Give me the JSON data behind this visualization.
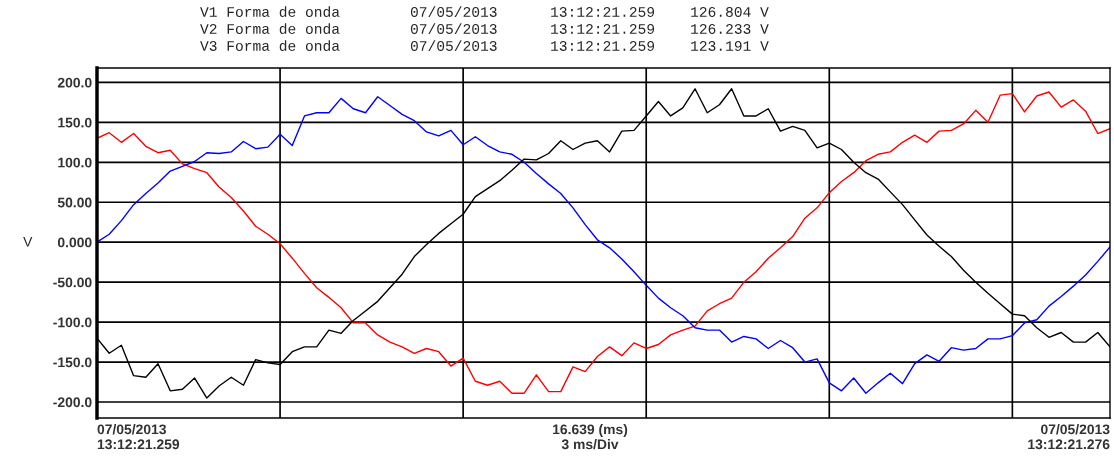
{
  "chart_data": {
    "type": "line",
    "ylabel": "V",
    "annotations": [
      "V1 Forma de onda        07/05/2013      13:12:21.259    126.804 V",
      "V2 Forma de onda        07/05/2013      13:12:21.259    126.233 V",
      "V3 Forma de onda        07/05/2013      13:12:21.259    123.191 V",
      "07/05/2013\n13:12:21.259",
      "16.639 (ms)\n3 ms/Div",
      "07/05/2013\n13:12:21.276"
    ],
    "categories": [
      null,
      null,
      null,
      null,
      null,
      null,
      null,
      null,
      null,
      null,
      null,
      null,
      null,
      null,
      null,
      null,
      null,
      null,
      null,
      null,
      null,
      null,
      null,
      null,
      null,
      null,
      null,
      null,
      null,
      null,
      null,
      null,
      null,
      null,
      null,
      null,
      null,
      null,
      null,
      null,
      null,
      null,
      null,
      null,
      null,
      null,
      null,
      null,
      null,
      null,
      null,
      null,
      null,
      null,
      null,
      null,
      null,
      null,
      null,
      null,
      null,
      null,
      null,
      null,
      null,
      null,
      null,
      null,
      null,
      null,
      null,
      null,
      null,
      null,
      null,
      null,
      null,
      null,
      null,
      null,
      null,
      null,
      null,
      null
    ],
    "ylim": [
      -220,
      218
    ],
    "yticks": [
      {
        "value": 200,
        "label": "200.0"
      },
      {
        "value": 150,
        "label": "150.0"
      },
      {
        "value": 100,
        "label": "100.0"
      },
      {
        "value": 50,
        "label": "50.00"
      },
      {
        "value": 0,
        "label": "0.000"
      },
      {
        "value": -50,
        "label": "-50.00"
      },
      {
        "value": -100,
        "label": "-100.0"
      },
      {
        "value": -150,
        "label": "-150.0"
      },
      {
        "value": -200,
        "label": "-200.0"
      }
    ],
    "grid": true,
    "series": [
      {
        "color": "#ff0000",
        "values": [
          130,
          137,
          125,
          136,
          120,
          112,
          115,
          98,
          92,
          87,
          69,
          56,
          39,
          20,
          10,
          -2,
          -20,
          -39,
          -57,
          -69,
          -82,
          -101,
          -101,
          -116,
          -125,
          -131,
          -139,
          -133,
          -137,
          -155,
          -145,
          -174,
          -179,
          -174,
          -189,
          -189,
          -166,
          -187,
          -187,
          -156,
          -162,
          -143,
          -131,
          -142,
          -126,
          -133,
          -128,
          -116,
          -110,
          -105,
          -86,
          -77,
          -70,
          -50,
          -37,
          -20,
          -7,
          7,
          30,
          43,
          62,
          76,
          87,
          102,
          110,
          113,
          125,
          134,
          125,
          139,
          140,
          148,
          165,
          150,
          184,
          186,
          163,
          183,
          188,
          169,
          178,
          164,
          136,
          142
        ]
      },
      {
        "color": "#0000ff",
        "values": [
          0,
          10,
          27,
          47,
          61,
          74,
          89,
          95,
          101,
          112,
          111,
          113,
          126,
          117,
          119,
          135,
          121,
          158,
          162,
          162,
          180,
          167,
          162,
          182,
          171,
          160,
          152,
          138,
          133,
          140,
          122,
          132,
          121,
          113,
          110,
          100,
          86,
          73,
          61,
          43,
          22,
          3,
          -7,
          -21,
          -37,
          -54,
          -70,
          -82,
          -92,
          -107,
          -110,
          -110,
          -125,
          -118,
          -121,
          -133,
          -123,
          -132,
          -150,
          -146,
          -176,
          -186,
          -170,
          -189,
          -176,
          -164,
          -177,
          -152,
          -141,
          -149,
          -132,
          -135,
          -133,
          -121,
          -121,
          -117,
          -101,
          -97,
          -80,
          -68,
          -55,
          -41,
          -24,
          -6
        ]
      },
      {
        "color": "#000000",
        "values": [
          -120,
          -139,
          -129,
          -167,
          -169,
          -152,
          -186,
          -184,
          -170,
          -195,
          -180,
          -169,
          -179,
          -147,
          -151,
          -153,
          -137,
          -131,
          -131,
          -110,
          -114,
          -98,
          -86,
          -74,
          -57,
          -40,
          -18,
          -3,
          11,
          23,
          35,
          57,
          67,
          77,
          90,
          104,
          103,
          111,
          127,
          116,
          124,
          127,
          113,
          139,
          140,
          158,
          176,
          158,
          168,
          192,
          162,
          172,
          192,
          158,
          158,
          167,
          139,
          145,
          140,
          118,
          124,
          116,
          100,
          87,
          79,
          63,
          47,
          28,
          9,
          -5,
          -18,
          -35,
          -50,
          -64,
          -77,
          -90,
          -92,
          -107,
          -119,
          -113,
          -125,
          -125,
          -113,
          -131
        ]
      }
    ]
  }
}
